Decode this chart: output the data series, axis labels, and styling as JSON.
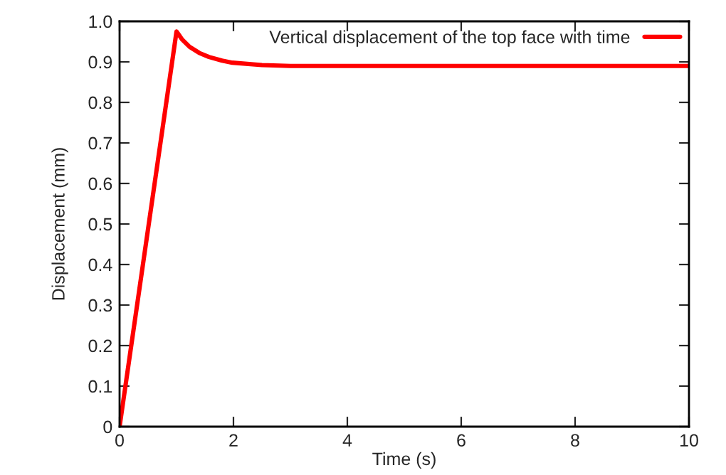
{
  "chart_data": {
    "type": "line",
    "xlabel": "Time (s)",
    "ylabel": "Displacement (mm)",
    "x": [
      0,
      1,
      1.1,
      1.23,
      1.4,
      1.57,
      1.8,
      1.98,
      2.5,
      3,
      4,
      6,
      8,
      10
    ],
    "series": [
      {
        "name": "Vertical displacement of the top face with time",
        "color": "#ff0000",
        "values": [
          0,
          0.975,
          0.955,
          0.937,
          0.922,
          0.912,
          0.903,
          0.898,
          0.892,
          0.89,
          0.89,
          0.89,
          0.89,
          0.89
        ]
      }
    ],
    "xlim": [
      0,
      10
    ],
    "xticks": [
      0,
      2,
      4,
      6,
      8,
      10
    ],
    "ylim": [
      0,
      1.0
    ],
    "yticks": [
      0,
      0.1,
      0.2,
      0.3,
      0.4,
      0.5,
      0.6,
      0.7,
      0.8,
      0.9,
      {
        "value": 1.0,
        "label": "1.0"
      }
    ],
    "legend": "top right",
    "grid": false
  }
}
